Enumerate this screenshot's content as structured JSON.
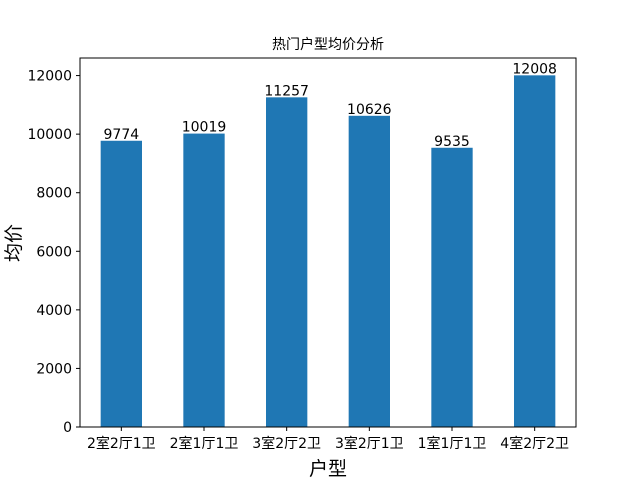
{
  "chart_data": {
    "type": "bar",
    "title": "热门户型均价分析",
    "xlabel": "户型",
    "ylabel": "均价",
    "categories": [
      "2室2厅1卫",
      "2室1厅1卫",
      "3室2厅2卫",
      "3室2厅1卫",
      "1室1厅1卫",
      "4室2厅2卫"
    ],
    "values": [
      9774,
      10019,
      11257,
      10626,
      9535,
      12008
    ],
    "data_labels": [
      "9774",
      "10019",
      "11257",
      "10626",
      "9535",
      "12008"
    ],
    "ylim": [
      0,
      12600
    ],
    "yticks": [
      0,
      2000,
      4000,
      6000,
      8000,
      10000,
      12000
    ],
    "ytick_labels": [
      "0",
      "2000",
      "4000",
      "6000",
      "8000",
      "10000",
      "12000"
    ],
    "grid": false,
    "bar_color": "#1f77b4"
  }
}
